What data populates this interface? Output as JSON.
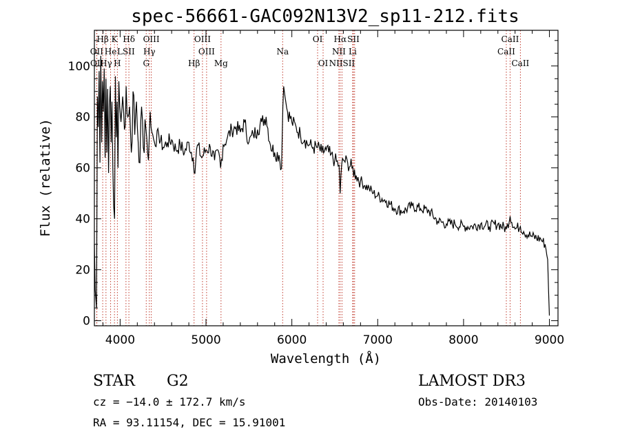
{
  "chart_data": {
    "type": "line",
    "title": "spec-56661-GAC092N13V2_sp11-212.fits",
    "xlabel": "Wavelength (Å)",
    "ylabel": "Flux (relative)",
    "xlim": [
      3700,
      9100
    ],
    "ylim": [
      -2,
      114
    ],
    "xticks": [
      4000,
      5000,
      6000,
      7000,
      8000,
      9000
    ],
    "yticks": [
      0,
      20,
      40,
      60,
      80,
      100
    ],
    "series": [
      {
        "name": "flux",
        "x": [
          3700,
          3710,
          3725,
          3735,
          3745,
          3755,
          3765,
          3775,
          3785,
          3795,
          3805,
          3815,
          3825,
          3835,
          3845,
          3855,
          3865,
          3875,
          3885,
          3895,
          3905,
          3915,
          3925,
          3935,
          3945,
          3955,
          3965,
          3975,
          3985,
          3995,
          4010,
          4030,
          4050,
          4070,
          4090,
          4110,
          4130,
          4150,
          4170,
          4190,
          4210,
          4230,
          4250,
          4270,
          4290,
          4310,
          4330,
          4350,
          4370,
          4400,
          4450,
          4500,
          4550,
          4600,
          4650,
          4700,
          4750,
          4800,
          4850,
          4862,
          4900,
          4950,
          5000,
          5050,
          5100,
          5150,
          5170,
          5200,
          5250,
          5300,
          5350,
          5400,
          5450,
          5500,
          5550,
          5600,
          5650,
          5700,
          5750,
          5800,
          5850,
          5880,
          5895,
          5905,
          5920,
          5950,
          6000,
          6050,
          6100,
          6150,
          6200,
          6250,
          6300,
          6350,
          6400,
          6450,
          6500,
          6550,
          6563,
          6580,
          6600,
          6650,
          6700,
          6750,
          6800,
          6850,
          6900,
          6950,
          7000,
          7100,
          7200,
          7300,
          7400,
          7500,
          7600,
          7700,
          7800,
          7900,
          8000,
          8100,
          8200,
          8300,
          8400,
          8500,
          8542,
          8600,
          8662,
          8700,
          8800,
          8900,
          8950,
          8980,
          9000
        ],
        "values": [
          30,
          12,
          5,
          88,
          76,
          98,
          62,
          104,
          70,
          94,
          82,
          99,
          64,
          95,
          66,
          91,
          58,
          84,
          92,
          70,
          86,
          60,
          45,
          40,
          96,
          72,
          86,
          60,
          94,
          84,
          78,
          88,
          75,
          92,
          80,
          84,
          66,
          90,
          73,
          86,
          70,
          62,
          84,
          68,
          79,
          72,
          63,
          82,
          74,
          70,
          73,
          68,
          70,
          71,
          67,
          69,
          66,
          70,
          64,
          58,
          69,
          64,
          67,
          68,
          63,
          66,
          60,
          69,
          72,
          75,
          76,
          74,
          78,
          70,
          73,
          75,
          78,
          80,
          69,
          66,
          65,
          60,
          84,
          92,
          88,
          82,
          78,
          76,
          73,
          71,
          69,
          68,
          68,
          66,
          67,
          65,
          63,
          61,
          50,
          61,
          63,
          62,
          60,
          57,
          55,
          53,
          52,
          50,
          49,
          47,
          44,
          43,
          45,
          44,
          43,
          39,
          38,
          38,
          37,
          37,
          38,
          37,
          38,
          36,
          41,
          36,
          37,
          35,
          33,
          32,
          30,
          24,
          2
        ]
      }
    ],
    "spectral_lines": [
      {
        "label": "Hβ",
        "x": 3797,
        "row": 0
      },
      {
        "label": "K",
        "x": 3934,
        "row": 0
      },
      {
        "label": "Hδ",
        "x": 4102,
        "row": 0
      },
      {
        "label": "OIII",
        "x": 4363,
        "row": 0
      },
      {
        "label": "OIII",
        "x": 4959,
        "row": 0
      },
      {
        "label": "OI",
        "x": 6300,
        "row": 0
      },
      {
        "label": "Hα",
        "x": 6563,
        "row": 0
      },
      {
        "label": "SII",
        "x": 6717,
        "row": 0
      },
      {
        "label": "CaII",
        "x": 8542,
        "row": 0
      },
      {
        "label": "OII",
        "x": 3727,
        "row": 1
      },
      {
        "label": "He",
        "x": 3889,
        "row": 1
      },
      {
        "label": "LSII",
        "x": 4068,
        "row": 1
      },
      {
        "label": "Hγ",
        "x": 4340,
        "row": 1
      },
      {
        "label": "OIII",
        "x": 5007,
        "row": 1
      },
      {
        "label": "Na",
        "x": 5893,
        "row": 1
      },
      {
        "label": "NII",
        "x": 6548,
        "row": 1
      },
      {
        "label": "Li",
        "x": 6708,
        "row": 1
      },
      {
        "label": "CaII",
        "x": 8498,
        "row": 1
      },
      {
        "label": "OII",
        "x": 3729,
        "row": 2
      },
      {
        "label": "Hγ",
        "x": 3835,
        "row": 2
      },
      {
        "label": "H",
        "x": 3968,
        "row": 2
      },
      {
        "label": "G",
        "x": 4304,
        "row": 2
      },
      {
        "label": "Hβ",
        "x": 4861,
        "row": 2
      },
      {
        "label": "Mg",
        "x": 5175,
        "row": 2
      },
      {
        "label": "OI",
        "x": 6364,
        "row": 2
      },
      {
        "label": "NIISII",
        "x": 6584,
        "row": 2
      },
      {
        "label": "CaII",
        "x": 8662,
        "row": 2
      }
    ],
    "line_markers": [
      3727,
      3729,
      3797,
      3835,
      3889,
      3934,
      3968,
      4068,
      4102,
      4304,
      4340,
      4363,
      4861,
      4959,
      5007,
      5175,
      5893,
      6300,
      6364,
      6548,
      6563,
      6584,
      6708,
      6717,
      6731,
      8498,
      8542,
      8662
    ],
    "line_color": "#c0392b"
  },
  "info": {
    "object_type": "STAR",
    "subclass": "G2",
    "survey": "LAMOST DR3",
    "cz": "cz = −14.0 ± 172.7 km/s",
    "obs_date": "Obs-Date: 20140103",
    "coords": "RA =  93.11154, DEC =  15.91001"
  }
}
